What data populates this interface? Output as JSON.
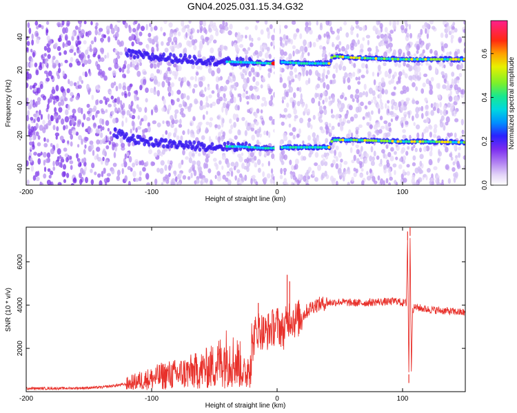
{
  "title": "GN04.2025.031.15.34.G32",
  "colors": {
    "line": "#e8302a",
    "spectrogram_cmap": [
      "#ffffff",
      "#d9c6f5",
      "#9a5ff0",
      "#6a1fe0",
      "#2a22ff",
      "#00c8ff",
      "#18e8a0",
      "#8cf22e",
      "#ffe600",
      "#ff7a00",
      "#ff1010",
      "#ff1f8c"
    ]
  },
  "chart_data": [
    {
      "type": "heatmap",
      "title": "GN04.2025.031.15.34.G32",
      "xlabel": "Height of straight line (km)",
      "ylabel": "Frequency (Hz)",
      "xlim": [
        -200,
        150
      ],
      "ylim": [
        -50,
        50
      ],
      "x_ticks": [
        -200,
        -100,
        0,
        100
      ],
      "y_ticks": [
        -40,
        -20,
        0,
        20,
        40
      ],
      "colorbar": {
        "label": "Normalized spectral amplitude",
        "range": [
          0.0,
          0.75
        ],
        "ticks": [
          0.0,
          0.2,
          0.4,
          0.6
        ]
      },
      "ridges": [
        {
          "name": "upper",
          "points": [
            [
              -120,
              30
            ],
            [
              -100,
              28
            ],
            [
              -80,
              27
            ],
            [
              -60,
              26
            ],
            [
              -40,
              25
            ],
            [
              -20,
              24.5
            ],
            [
              -5,
              24
            ],
            [
              0,
              25
            ],
            [
              20,
              24
            ],
            [
              42,
              24
            ],
            [
              44,
              28.5
            ],
            [
              60,
              27.5
            ],
            [
              80,
              27
            ],
            [
              100,
              26.5
            ],
            [
              120,
              26.5
            ],
            [
              150,
              26.5
            ]
          ]
        },
        {
          "name": "lower",
          "points": [
            [
              -130,
              -18
            ],
            [
              -110,
              -23
            ],
            [
              -90,
              -24.5
            ],
            [
              -70,
              -26
            ],
            [
              -50,
              -26.5
            ],
            [
              -30,
              -26.5
            ],
            [
              -10,
              -27.5
            ],
            [
              -3,
              -27.5
            ],
            [
              5,
              -27
            ],
            [
              20,
              -27
            ],
            [
              42,
              -27
            ],
            [
              44,
              -22.5
            ],
            [
              60,
              -22.5
            ],
            [
              80,
              -23
            ],
            [
              100,
              -23.5
            ],
            [
              120,
              -23.5
            ],
            [
              150,
              -24
            ]
          ]
        }
      ],
      "gap": [
        -2,
        2
      ]
    },
    {
      "type": "line",
      "xlabel": "Height of straight line (km)",
      "ylabel": "SNR (10 * v/v)",
      "xlim": [
        -200,
        150
      ],
      "ylim": [
        0,
        7600
      ],
      "x_ticks": [
        -200,
        -100,
        0,
        100
      ],
      "y_ticks": [
        2000,
        4000,
        6000
      ],
      "series": [
        {
          "x": [
            -200,
            -180,
            -160,
            -140,
            -120,
            -110,
            -100,
            -90,
            -80,
            -70,
            -60,
            -50,
            -40,
            -30,
            -25,
            -20,
            -18,
            -15,
            -12,
            -10,
            -5,
            0,
            5,
            8,
            10,
            12,
            15,
            20,
            25,
            30,
            40,
            50,
            60,
            70,
            80,
            90,
            95,
            100,
            103,
            104,
            105,
            106,
            107,
            108,
            110,
            120,
            130,
            140,
            150
          ],
          "y": [
            150,
            150,
            160,
            200,
            350,
            500,
            600,
            750,
            800,
            900,
            1000,
            1200,
            1600,
            1300,
            700,
            2000,
            2600,
            2900,
            2800,
            2700,
            2900,
            3100,
            2800,
            3200,
            3500,
            3400,
            3300,
            3500,
            3800,
            4000,
            4100,
            4150,
            4100,
            4100,
            4150,
            4150,
            4200,
            4100,
            4100,
            7000,
            800,
            7200,
            1000,
            3800,
            3900,
            3800,
            3750,
            3700,
            3650
          ]
        }
      ],
      "spikes": [
        [
          -15,
          4100
        ],
        [
          8,
          5400
        ],
        [
          10,
          5100
        ],
        [
          104,
          7400
        ],
        [
          106,
          7600
        ],
        [
          105,
          400
        ]
      ]
    }
  ]
}
